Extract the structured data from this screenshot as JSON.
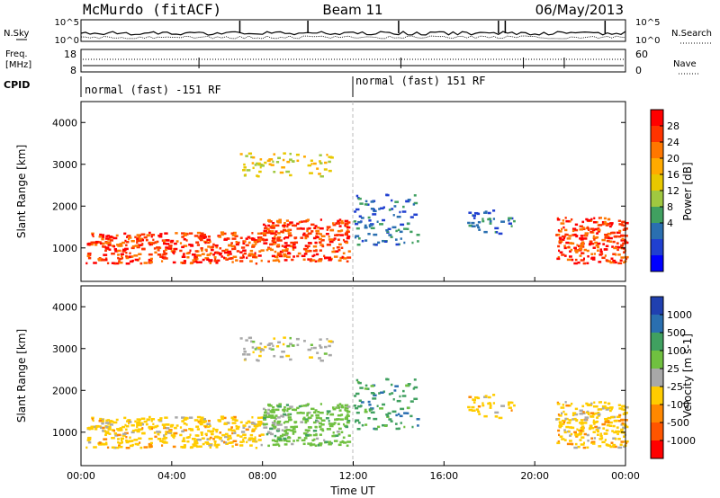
{
  "header": {
    "title": "McMurdo (fitACF)",
    "beam": "Beam 11",
    "date": "06/May/2013"
  },
  "noise_panel": {
    "left_label": "N.Sky",
    "right_label": "N.Search",
    "left_ticks": [
      "10^5",
      "10^0"
    ],
    "right_ticks": [
      "10^5",
      "10^0"
    ]
  },
  "freq_panel": {
    "left_label_line1": "Freq.",
    "left_label_line2": "[MHz]",
    "right_label": "Nave",
    "left_ticks": [
      "18",
      "8"
    ],
    "right_ticks": [
      "60",
      "0"
    ]
  },
  "cpid": {
    "label": "CPID",
    "segments": [
      {
        "text": "normal (fast) -151 RF",
        "start_hour": 0
      },
      {
        "text": "normal (fast) 151 RF",
        "start_hour": 12
      }
    ]
  },
  "power_panel": {
    "ylabel": "Slant Range [km]",
    "colorbar_label": "Power [dB]",
    "colorbar_ticks": [
      "28",
      "24",
      "20",
      "16",
      "12",
      "8",
      "4"
    ],
    "colorbar_colors": [
      "#ff0000",
      "#ff3300",
      "#ff7700",
      "#ffaa00",
      "#e8c800",
      "#a0c840",
      "#40a060",
      "#2a6fb0",
      "#2040d0",
      "#0000ff"
    ]
  },
  "velocity_panel": {
    "ylabel": "Slant Range [km]",
    "colorbar_label": "Velocity [m s-1]",
    "colorbar_ticks": [
      "1000",
      "500",
      "100",
      "25",
      "-25",
      "-100",
      "-500",
      "-1000"
    ],
    "colorbar_colors": [
      "#2040b0",
      "#2a6fb0",
      "#40a060",
      "#70c040",
      "#a8a8a8",
      "#ffcc00",
      "#ff8800",
      "#ff5500",
      "#ff0000"
    ]
  },
  "xaxis": {
    "label": "Time UT",
    "ticks": [
      "00:00",
      "04:00",
      "08:00",
      "12:00",
      "16:00",
      "20:00",
      "00:00"
    ]
  },
  "chart_data": {
    "type": "heatmap",
    "x_range_hours": [
      0,
      24
    ],
    "y_range_km": [
      200,
      4500
    ],
    "yticks": [
      1000,
      2000,
      3000,
      4000
    ],
    "scatter_regions": [
      {
        "name": "near-range band (hours 0-8)",
        "t0": 0.2,
        "t1": 8,
        "r0": 650,
        "r1": 1400,
        "power": "high",
        "velocity": "-100"
      },
      {
        "name": "near-range band (hours 8-12)",
        "t0": 8,
        "t1": 11.8,
        "r0": 700,
        "r1": 1700,
        "power": "high",
        "velocity": "25"
      },
      {
        "name": "mid-range arc",
        "t0": 7,
        "t1": 11,
        "r0": 2700,
        "r1": 3300,
        "power": "medium",
        "velocity": "-25"
      },
      {
        "name": "post-noon scatter",
        "t0": 12,
        "t1": 14.8,
        "r0": 1100,
        "r1": 2300,
        "power": "low",
        "velocity": "100"
      },
      {
        "name": "afternoon patch",
        "t0": 17,
        "t1": 19.2,
        "r0": 1350,
        "r1": 1950,
        "power": "low",
        "velocity": "-100"
      },
      {
        "name": "evening band",
        "t0": 20.9,
        "t1": 24,
        "r0": 650,
        "r1": 1750,
        "power": "high",
        "velocity": "-100"
      }
    ]
  }
}
